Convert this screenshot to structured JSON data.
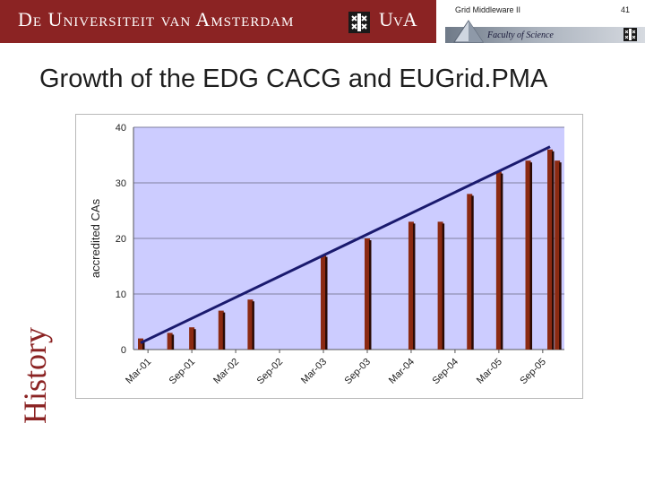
{
  "header": {
    "university_name": "De Universiteit van Amsterdam",
    "university_short": "UvA",
    "course_title": "Grid Middleware II",
    "page_number": "41",
    "faculty": "Faculty of Science",
    "brand_color": "#8b2323"
  },
  "slide": {
    "title": "Growth of the EDG CACG and EUGrid.PMA",
    "side_label": "History"
  },
  "chart_data": {
    "type": "bar",
    "title": "",
    "xlabel": "",
    "ylabel": "accredited CAs",
    "ylim": [
      0,
      40
    ],
    "yticks": [
      0,
      10,
      20,
      30,
      40
    ],
    "x_tick_labels": [
      "Mar-01",
      "Sep-01",
      "Mar-02",
      "Sep-02",
      "Mar-03",
      "Sep-03",
      "Mar-04",
      "Sep-04",
      "Mar-05",
      "Sep-05"
    ],
    "x_start": "2001-02",
    "x_end": "2005-10",
    "plot_background": "#ccccff",
    "grid": true,
    "bar_color": "#8b2a12",
    "trend_color": "#1a1a6e",
    "series": [
      {
        "values": [
          {
            "x": "2001-02",
            "y": 2
          },
          {
            "x": "2001-06",
            "y": 3
          },
          {
            "x": "2001-09",
            "y": 4
          },
          {
            "x": "2002-01",
            "y": 7
          },
          {
            "x": "2002-05",
            "y": 9
          },
          {
            "x": "2003-03",
            "y": 17
          },
          {
            "x": "2003-09",
            "y": 20
          },
          {
            "x": "2004-03",
            "y": 23
          },
          {
            "x": "2004-07",
            "y": 23
          },
          {
            "x": "2004-11",
            "y": 28
          },
          {
            "x": "2005-03",
            "y": 32
          },
          {
            "x": "2005-07",
            "y": 34
          },
          {
            "x": "2005-10",
            "y": 36
          },
          {
            "x": "2005-11",
            "y": 34
          }
        ]
      }
    ],
    "trend_line": {
      "from": {
        "x": "2001-02",
        "y": 1.2
      },
      "to": {
        "x": "2005-10",
        "y": 36.5
      }
    }
  }
}
